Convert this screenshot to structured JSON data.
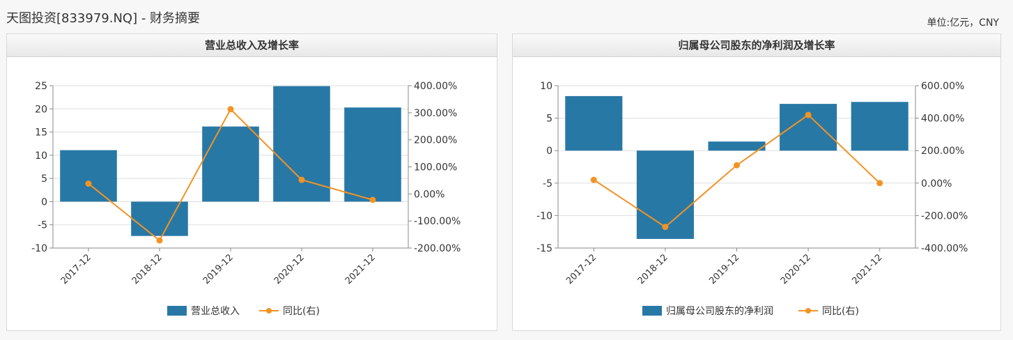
{
  "page": {
    "title": "天图投资[833979.NQ] - 财务摘要",
    "unit": "单位:亿元，CNY"
  },
  "colors": {
    "bar": "#2878a6",
    "line": "#f39323",
    "grid": "#dddddd",
    "axis": "#888888"
  },
  "chart_data": [
    {
      "type": "bar",
      "title": "营业总收入及增长率",
      "categories": [
        "2017-12",
        "2018-12",
        "2019-12",
        "2020-12",
        "2021-12"
      ],
      "series": [
        {
          "name": "营业总收入",
          "type": "bar",
          "axis": "left",
          "values": [
            11.1,
            -7.4,
            16.2,
            24.9,
            20.3
          ]
        },
        {
          "name": "同比(右)",
          "type": "line",
          "axis": "right",
          "values": [
            38,
            -172,
            313,
            52,
            -22
          ]
        }
      ],
      "left_axis": {
        "min": -10,
        "max": 25,
        "ticks": [
          25,
          20,
          15,
          10,
          5,
          0,
          -5,
          -10
        ]
      },
      "right_axis": {
        "min": -200,
        "max": 400,
        "ticks": [
          "400.00%",
          "300.00%",
          "200.00%",
          "100.00%",
          "0.00%",
          "-100.00%",
          "-200.00%"
        ]
      },
      "legend": [
        "营业总收入",
        "同比(右)"
      ]
    },
    {
      "type": "bar",
      "title": "归属母公司股东的净利润及增长率",
      "categories": [
        "2017-12",
        "2018-12",
        "2019-12",
        "2020-12",
        "2021-12"
      ],
      "series": [
        {
          "name": "归属母公司股东的净利润",
          "type": "bar",
          "axis": "left",
          "values": [
            8.4,
            -13.6,
            1.4,
            7.2,
            7.5
          ]
        },
        {
          "name": "同比(右)",
          "type": "line",
          "axis": "right",
          "values": [
            20,
            -270,
            110,
            420,
            0
          ]
        }
      ],
      "left_axis": {
        "min": -15,
        "max": 10,
        "ticks": [
          10,
          5,
          0,
          -5,
          -10,
          -15
        ]
      },
      "right_axis": {
        "min": -400,
        "max": 600,
        "ticks": [
          "600.00%",
          "400.00%",
          "200.00%",
          "0.00%",
          "-200.00%",
          "-400.00%"
        ]
      },
      "legend": [
        "归属母公司股东的净利润",
        "同比(右)"
      ]
    }
  ]
}
